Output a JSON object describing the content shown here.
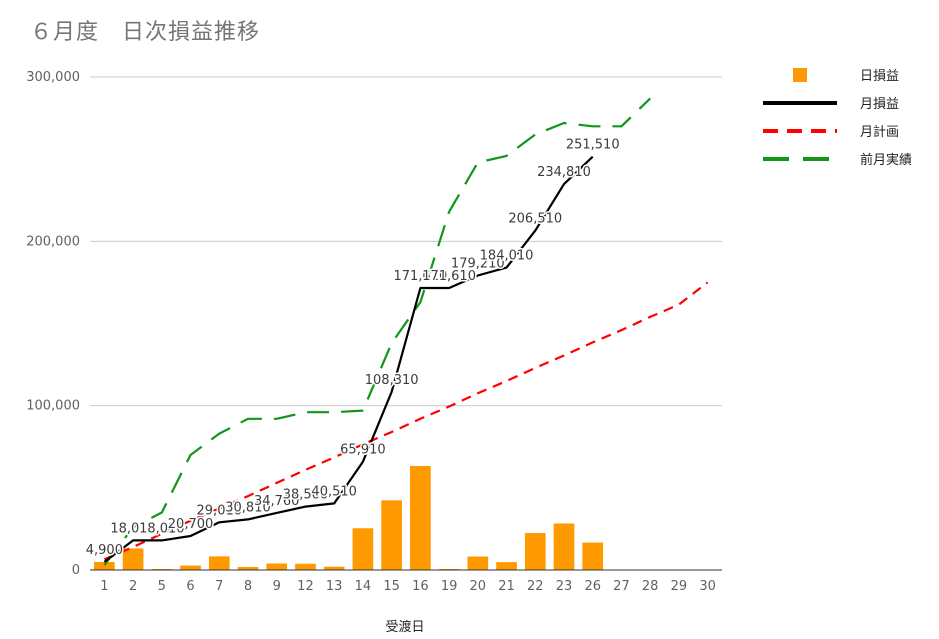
{
  "title": "６月度　日次損益推移",
  "chart_data": {
    "type": "combo",
    "xlabel": "受渡日",
    "categories": [
      "1",
      "2",
      "5",
      "6",
      "7",
      "8",
      "9",
      "12",
      "13",
      "14",
      "15",
      "16",
      "19",
      "20",
      "21",
      "22",
      "23",
      "26",
      "27",
      "28",
      "29",
      "30"
    ],
    "yticks": [
      0,
      100000,
      200000,
      300000
    ],
    "ytick_labels": [
      "0",
      "100,000",
      "200,000",
      "300,000"
    ],
    "ylim": [
      0,
      300000
    ],
    "legend_position": "right",
    "series": [
      {
        "name": "日損益",
        "kind": "bar",
        "color": "#ff9900",
        "values": [
          4900,
          13110,
          600,
          2700,
          8300,
          1810,
          3950,
          3800,
          2000,
          25400,
          42400,
          63300,
          600,
          8200,
          4800,
          22500,
          28300,
          16700,
          null,
          null,
          null,
          null
        ]
      },
      {
        "name": "月損益",
        "kind": "line",
        "style": "solid",
        "color": "#000000",
        "values": [
          4900,
          18010,
          18010,
          20700,
          29010,
          30810,
          34760,
          38560,
          40510,
          65910,
          108310,
          171610,
          171610,
          179210,
          184010,
          206510,
          234810,
          251510,
          null,
          null,
          null,
          null
        ]
      },
      {
        "name": "月計画",
        "kind": "line",
        "style": "dashed",
        "color": "#ff0000",
        "values": [
          6500,
          14000,
          22000,
          30000,
          37500,
          45000,
          53000,
          61000,
          68500,
          76500,
          84000,
          92000,
          99500,
          107500,
          115000,
          123000,
          130500,
          138500,
          146000,
          154000,
          161500,
          175000
        ]
      },
      {
        "name": "前月実績",
        "kind": "line",
        "style": "longdash",
        "color": "#109618",
        "values": [
          3000,
          26000,
          35000,
          70000,
          83000,
          92000,
          92000,
          96000,
          96000,
          97000,
          138000,
          163000,
          218000,
          248000,
          252000,
          265000,
          272000,
          270000,
          270000,
          287000,
          null,
          null
        ]
      }
    ],
    "data_labels": {
      "series": "月損益",
      "labels": [
        "4,900",
        "18,010",
        "18,010",
        "20,700",
        "29,010",
        "30,810",
        "34,760",
        "38,560",
        "40,510",
        "65,910",
        "108,310",
        "171,610",
        "171,610",
        "179,210",
        "184,010",
        "206,510",
        "234,810",
        "251,510"
      ]
    }
  }
}
